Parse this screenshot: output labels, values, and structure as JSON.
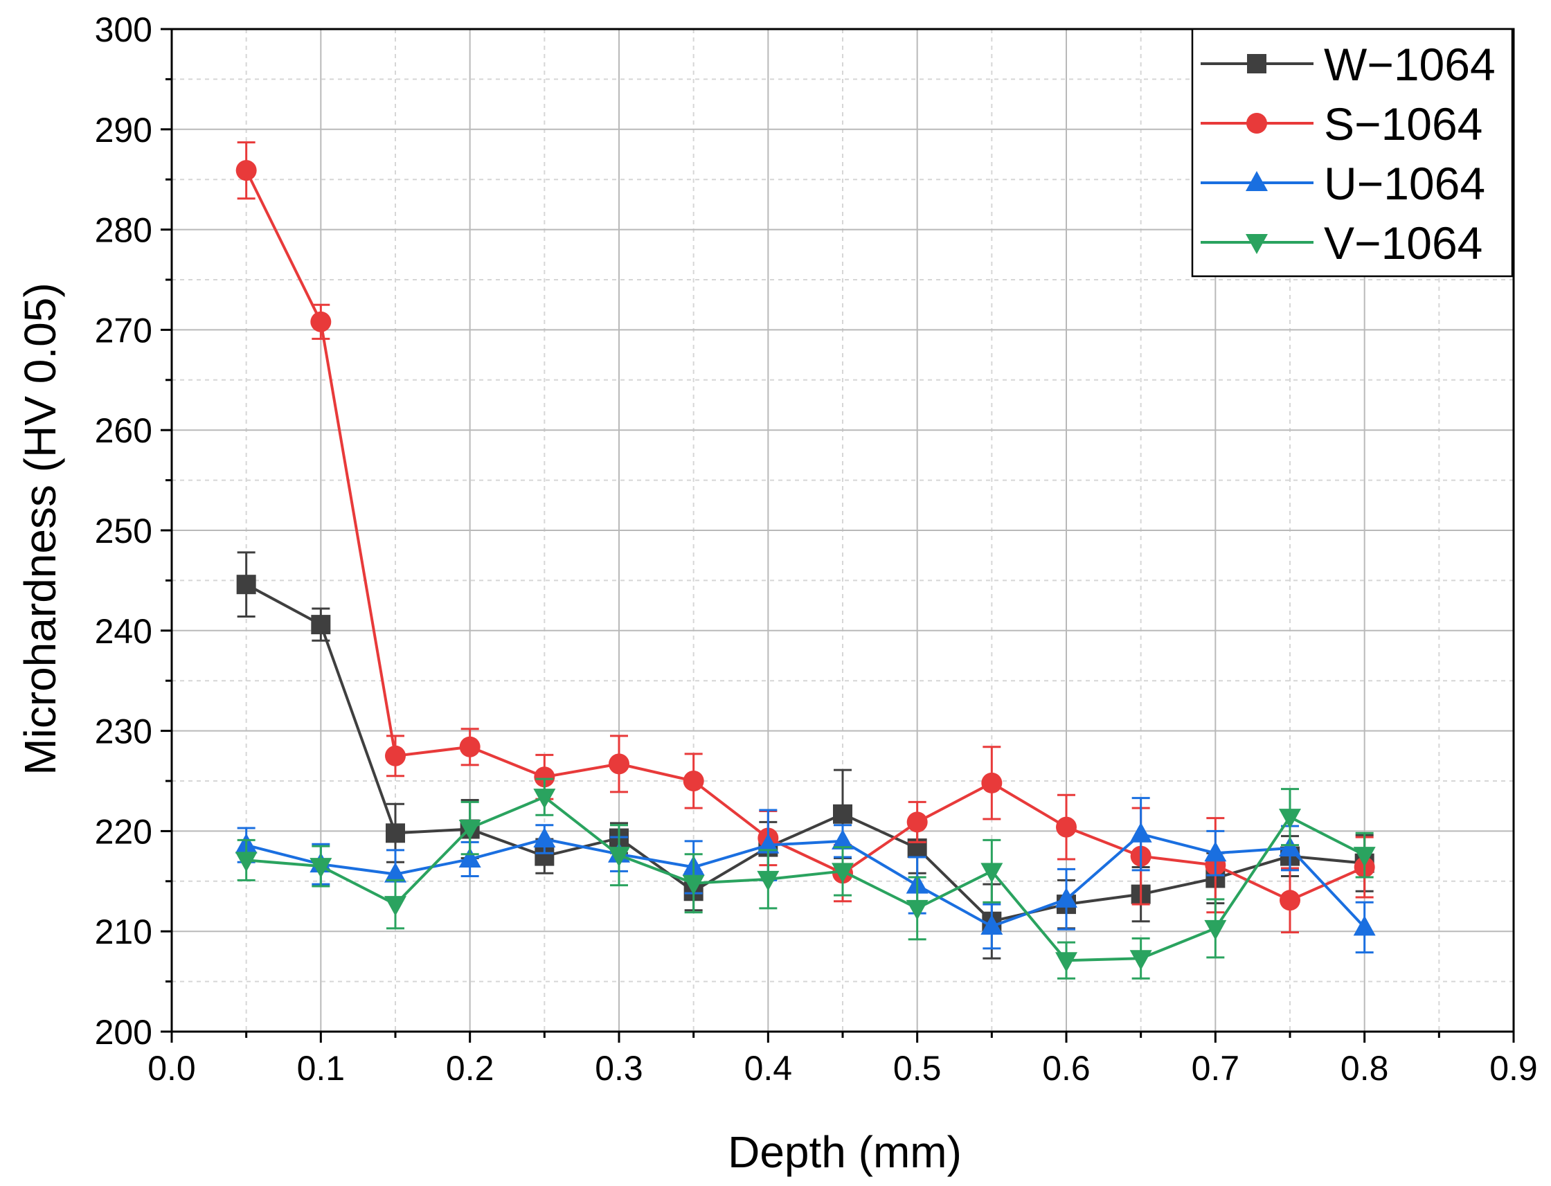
{
  "chart_data": {
    "type": "line",
    "xlabel": "Depth (mm)",
    "ylabel": "Microhardness (HV 0.05)",
    "xlim": [
      0.0,
      0.9
    ],
    "ylim": [
      200,
      300
    ],
    "x_ticks": [
      "0.0",
      "0.1",
      "0.2",
      "0.3",
      "0.4",
      "0.5",
      "0.6",
      "0.7",
      "0.8",
      "0.9"
    ],
    "y_ticks": [
      "200",
      "210",
      "220",
      "230",
      "240",
      "250",
      "260",
      "270",
      "280",
      "290",
      "300"
    ],
    "grid": true,
    "legend_position": "top-right",
    "x": [
      0.05,
      0.1,
      0.15,
      0.2,
      0.25,
      0.3,
      0.35,
      0.4,
      0.45,
      0.5,
      0.55,
      0.6,
      0.65,
      0.7,
      0.75,
      0.8
    ],
    "series": [
      {
        "name": "W−1064",
        "color": "#3f3f3f",
        "marker": "square",
        "values": [
          244.6,
          240.6,
          219.8,
          220.2,
          217.5,
          219.3,
          214.0,
          218.4,
          221.7,
          218.3,
          211.0,
          212.7,
          213.7,
          215.3,
          217.5,
          216.8
        ],
        "errors": [
          3.2,
          1.6,
          2.9,
          2.9,
          1.7,
          1.5,
          1.9,
          2.5,
          4.4,
          2.5,
          3.7,
          2.4,
          2.7,
          2.5,
          2.0,
          2.8
        ]
      },
      {
        "name": "S−1064",
        "color": "#e83a3a",
        "marker": "circle",
        "values": [
          285.9,
          270.8,
          227.5,
          228.4,
          225.4,
          226.7,
          225.0,
          219.3,
          215.8,
          220.9,
          224.8,
          220.4,
          217.5,
          216.6,
          213.1,
          216.4
        ],
        "errors": [
          2.8,
          1.7,
          2.0,
          1.8,
          2.2,
          2.8,
          2.7,
          2.7,
          2.8,
          2.0,
          3.6,
          3.2,
          4.8,
          4.7,
          3.2,
          3.0
        ]
      },
      {
        "name": "U−1064",
        "color": "#1a6fe0",
        "marker": "triangle-up",
        "values": [
          218.6,
          216.7,
          215.7,
          217.2,
          219.2,
          217.7,
          216.4,
          218.6,
          219.0,
          214.6,
          210.5,
          213.2,
          219.7,
          217.8,
          218.3,
          210.4
        ],
        "errors": [
          1.7,
          2.0,
          2.4,
          1.7,
          1.4,
          1.7,
          2.6,
          3.5,
          1.6,
          2.8,
          2.2,
          3.0,
          3.6,
          2.2,
          2.2,
          2.5
        ]
      },
      {
        "name": "V−1064",
        "color": "#2aa35f",
        "marker": "triangle-down",
        "values": [
          217.1,
          216.5,
          212.7,
          220.3,
          223.4,
          217.6,
          214.8,
          215.2,
          216.0,
          212.3,
          216.0,
          207.1,
          207.3,
          210.3,
          221.4,
          217.6
        ],
        "errors": [
          2.0,
          2.0,
          2.4,
          2.6,
          1.8,
          3.0,
          2.9,
          2.9,
          2.4,
          3.1,
          3.1,
          1.8,
          2.0,
          2.9,
          2.8,
          2.2
        ]
      }
    ]
  }
}
